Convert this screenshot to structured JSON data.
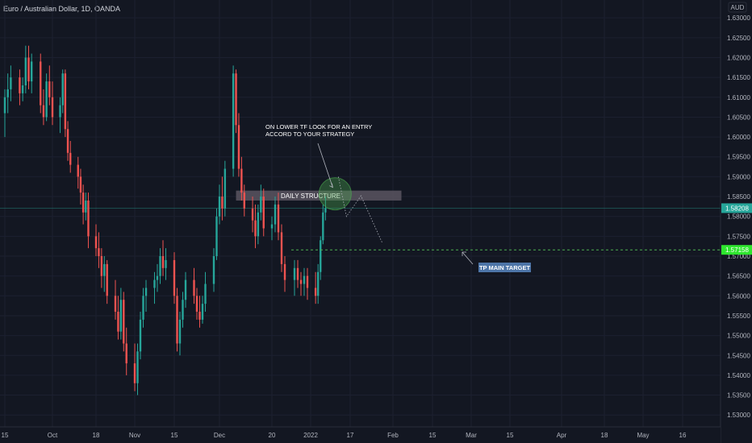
{
  "header": {
    "title": "Euro / Australian Dollar, 1D, OANDA"
  },
  "colors": {
    "background": "#131722",
    "up": "#26a69a",
    "down": "#ef5350",
    "zone": "#5a5560",
    "target_line": "#4caf50",
    "current_price_bg": "#26a69a",
    "target_price_bg": "#2ee62e",
    "tp_label_bg": "#4d75a8",
    "circle": "#4caf50"
  },
  "chart_data": {
    "type": "candlestick",
    "title": "Euro / Australian Dollar, 1D, OANDA",
    "currency_label": "AUD",
    "y_ticks": [
      "1.63000",
      "1.62500",
      "1.62000",
      "1.61500",
      "1.61000",
      "1.60500",
      "1.60000",
      "1.59500",
      "1.59000",
      "1.58500",
      "1.58000",
      "1.57500",
      "1.57000",
      "1.56500",
      "1.56000",
      "1.55500",
      "1.55000",
      "1.54500",
      "1.54000",
      "1.53500",
      "1.53000"
    ],
    "x_ticks": [
      {
        "label": "15",
        "date": "2021-09-15"
      },
      {
        "label": "Oct",
        "date": "2021-10-01"
      },
      {
        "label": "18",
        "date": "2021-10-18"
      },
      {
        "label": "Nov",
        "date": "2021-11-01"
      },
      {
        "label": "15",
        "date": "2021-11-15"
      },
      {
        "label": "Dec",
        "date": "2021-12-01"
      },
      {
        "label": "20",
        "date": "2021-12-20"
      },
      {
        "label": "2022",
        "date": "2022-01-01"
      },
      {
        "label": "17",
        "date": "2022-01-17"
      },
      {
        "label": "Feb",
        "date": "2022-02-01"
      },
      {
        "label": "15",
        "date": "2022-02-15"
      },
      {
        "label": "Mar",
        "date": "2022-03-01"
      },
      {
        "label": "15",
        "date": "2022-03-15"
      },
      {
        "label": "Apr",
        "date": "2022-04-01"
      },
      {
        "label": "18",
        "date": "2022-04-18"
      },
      {
        "label": "May",
        "date": "2022-05-02"
      },
      {
        "label": "16",
        "date": "2022-05-16"
      }
    ],
    "y_range": [
      1.527,
      1.6345
    ],
    "x_range": [
      "2021-09-15",
      "2022-06-01"
    ],
    "current_price": "1.58208",
    "target_price": "1.57158",
    "ohlc": [
      {
        "date": "2021-09-15",
        "o": 1.606,
        "h": 1.612,
        "l": 1.6,
        "c": 1.61
      },
      {
        "date": "2021-09-16",
        "o": 1.61,
        "h": 1.616,
        "l": 1.606,
        "c": 1.612
      },
      {
        "date": "2021-09-17",
        "o": 1.612,
        "h": 1.618,
        "l": 1.609,
        "c": 1.615
      },
      {
        "date": "2021-09-20",
        "o": 1.615,
        "h": 1.617,
        "l": 1.608,
        "c": 1.611
      },
      {
        "date": "2021-09-21",
        "o": 1.611,
        "h": 1.615,
        "l": 1.609,
        "c": 1.613
      },
      {
        "date": "2021-09-22",
        "o": 1.613,
        "h": 1.623,
        "l": 1.611,
        "c": 1.62
      },
      {
        "date": "2021-09-23",
        "o": 1.62,
        "h": 1.623,
        "l": 1.612,
        "c": 1.614
      },
      {
        "date": "2021-09-24",
        "o": 1.614,
        "h": 1.621,
        "l": 1.611,
        "c": 1.619
      },
      {
        "date": "2021-09-27",
        "o": 1.619,
        "h": 1.621,
        "l": 1.606,
        "c": 1.608
      },
      {
        "date": "2021-09-28",
        "o": 1.608,
        "h": 1.612,
        "l": 1.603,
        "c": 1.605
      },
      {
        "date": "2021-09-29",
        "o": 1.605,
        "h": 1.616,
        "l": 1.604,
        "c": 1.614
      },
      {
        "date": "2021-09-30",
        "o": 1.614,
        "h": 1.618,
        "l": 1.608,
        "c": 1.61
      },
      {
        "date": "2021-10-01",
        "o": 1.61,
        "h": 1.614,
        "l": 1.603,
        "c": 1.605
      },
      {
        "date": "2021-10-04",
        "o": 1.605,
        "h": 1.61,
        "l": 1.601,
        "c": 1.608
      },
      {
        "date": "2021-10-05",
        "o": 1.608,
        "h": 1.617,
        "l": 1.606,
        "c": 1.616
      },
      {
        "date": "2021-10-06",
        "o": 1.616,
        "h": 1.617,
        "l": 1.6,
        "c": 1.602
      },
      {
        "date": "2021-10-07",
        "o": 1.602,
        "h": 1.604,
        "l": 1.594,
        "c": 1.596
      },
      {
        "date": "2021-10-08",
        "o": 1.596,
        "h": 1.599,
        "l": 1.591,
        "c": 1.593
      },
      {
        "date": "2021-10-11",
        "o": 1.593,
        "h": 1.595,
        "l": 1.587,
        "c": 1.59
      },
      {
        "date": "2021-10-12",
        "o": 1.59,
        "h": 1.592,
        "l": 1.583,
        "c": 1.586
      },
      {
        "date": "2021-10-13",
        "o": 1.586,
        "h": 1.588,
        "l": 1.578,
        "c": 1.581
      },
      {
        "date": "2021-10-14",
        "o": 1.581,
        "h": 1.586,
        "l": 1.579,
        "c": 1.584
      },
      {
        "date": "2021-10-15",
        "o": 1.584,
        "h": 1.586,
        "l": 1.572,
        "c": 1.575
      },
      {
        "date": "2021-10-18",
        "o": 1.575,
        "h": 1.578,
        "l": 1.57,
        "c": 1.572
      },
      {
        "date": "2021-10-19",
        "o": 1.572,
        "h": 1.576,
        "l": 1.567,
        "c": 1.57
      },
      {
        "date": "2021-10-20",
        "o": 1.57,
        "h": 1.572,
        "l": 1.562,
        "c": 1.565
      },
      {
        "date": "2021-10-21",
        "o": 1.565,
        "h": 1.57,
        "l": 1.561,
        "c": 1.568
      },
      {
        "date": "2021-10-22",
        "o": 1.568,
        "h": 1.569,
        "l": 1.558,
        "c": 1.56
      },
      {
        "date": "2021-10-25",
        "o": 1.56,
        "h": 1.564,
        "l": 1.554,
        "c": 1.556
      },
      {
        "date": "2021-10-26",
        "o": 1.556,
        "h": 1.56,
        "l": 1.549,
        "c": 1.551
      },
      {
        "date": "2021-10-27",
        "o": 1.551,
        "h": 1.562,
        "l": 1.549,
        "c": 1.559
      },
      {
        "date": "2021-10-28",
        "o": 1.559,
        "h": 1.561,
        "l": 1.546,
        "c": 1.548
      },
      {
        "date": "2021-10-29",
        "o": 1.548,
        "h": 1.552,
        "l": 1.54,
        "c": 1.543
      },
      {
        "date": "2021-11-01",
        "o": 1.543,
        "h": 1.548,
        "l": 1.536,
        "c": 1.538
      },
      {
        "date": "2021-11-02",
        "o": 1.538,
        "h": 1.548,
        "l": 1.535,
        "c": 1.546
      },
      {
        "date": "2021-11-03",
        "o": 1.546,
        "h": 1.556,
        "l": 1.544,
        "c": 1.554
      },
      {
        "date": "2021-11-04",
        "o": 1.554,
        "h": 1.562,
        "l": 1.552,
        "c": 1.56
      },
      {
        "date": "2021-11-05",
        "o": 1.56,
        "h": 1.564,
        "l": 1.556,
        "c": 1.562
      },
      {
        "date": "2021-11-08",
        "o": 1.562,
        "h": 1.566,
        "l": 1.558,
        "c": 1.564
      },
      {
        "date": "2021-11-09",
        "o": 1.564,
        "h": 1.568,
        "l": 1.561,
        "c": 1.565
      },
      {
        "date": "2021-11-10",
        "o": 1.565,
        "h": 1.572,
        "l": 1.563,
        "c": 1.57
      },
      {
        "date": "2021-11-11",
        "o": 1.57,
        "h": 1.574,
        "l": 1.565,
        "c": 1.567
      },
      {
        "date": "2021-11-12",
        "o": 1.567,
        "h": 1.572,
        "l": 1.564,
        "c": 1.569
      },
      {
        "date": "2021-11-15",
        "o": 1.569,
        "h": 1.571,
        "l": 1.558,
        "c": 1.56
      },
      {
        "date": "2021-11-16",
        "o": 1.56,
        "h": 1.562,
        "l": 1.546,
        "c": 1.548
      },
      {
        "date": "2021-11-17",
        "o": 1.548,
        "h": 1.556,
        "l": 1.545,
        "c": 1.554
      },
      {
        "date": "2021-11-18",
        "o": 1.554,
        "h": 1.561,
        "l": 1.552,
        "c": 1.559
      },
      {
        "date": "2021-11-19",
        "o": 1.559,
        "h": 1.566,
        "l": 1.557,
        "c": 1.564
      },
      {
        "date": "2021-11-22",
        "o": 1.564,
        "h": 1.567,
        "l": 1.558,
        "c": 1.56
      },
      {
        "date": "2021-11-23",
        "o": 1.56,
        "h": 1.562,
        "l": 1.554,
        "c": 1.556
      },
      {
        "date": "2021-11-24",
        "o": 1.556,
        "h": 1.56,
        "l": 1.552,
        "c": 1.554
      },
      {
        "date": "2021-11-25",
        "o": 1.554,
        "h": 1.56,
        "l": 1.553,
        "c": 1.558
      },
      {
        "date": "2021-11-26",
        "o": 1.558,
        "h": 1.566,
        "l": 1.556,
        "c": 1.563
      },
      {
        "date": "2021-11-29",
        "o": 1.563,
        "h": 1.572,
        "l": 1.561,
        "c": 1.57
      },
      {
        "date": "2021-11-30",
        "o": 1.57,
        "h": 1.582,
        "l": 1.569,
        "c": 1.58
      },
      {
        "date": "2021-12-01",
        "o": 1.58,
        "h": 1.588,
        "l": 1.578,
        "c": 1.585
      },
      {
        "date": "2021-12-02",
        "o": 1.585,
        "h": 1.59,
        "l": 1.579,
        "c": 1.582
      },
      {
        "date": "2021-12-03",
        "o": 1.582,
        "h": 1.594,
        "l": 1.58,
        "c": 1.592
      },
      {
        "date": "2021-12-06",
        "o": 1.592,
        "h": 1.618,
        "l": 1.59,
        "c": 1.616
      },
      {
        "date": "2021-12-07",
        "o": 1.616,
        "h": 1.617,
        "l": 1.601,
        "c": 1.603
      },
      {
        "date": "2021-12-08",
        "o": 1.603,
        "h": 1.606,
        "l": 1.59,
        "c": 1.592
      },
      {
        "date": "2021-12-09",
        "o": 1.592,
        "h": 1.595,
        "l": 1.584,
        "c": 1.586
      },
      {
        "date": "2021-12-10",
        "o": 1.586,
        "h": 1.588,
        "l": 1.58,
        "c": 1.582
      },
      {
        "date": "2021-12-13",
        "o": 1.582,
        "h": 1.585,
        "l": 1.576,
        "c": 1.579
      },
      {
        "date": "2021-12-14",
        "o": 1.579,
        "h": 1.583,
        "l": 1.572,
        "c": 1.575
      },
      {
        "date": "2021-12-15",
        "o": 1.575,
        "h": 1.583,
        "l": 1.573,
        "c": 1.581
      },
      {
        "date": "2021-12-16",
        "o": 1.581,
        "h": 1.588,
        "l": 1.579,
        "c": 1.585
      },
      {
        "date": "2021-12-17",
        "o": 1.585,
        "h": 1.587,
        "l": 1.575,
        "c": 1.577
      },
      {
        "date": "2021-12-20",
        "o": 1.577,
        "h": 1.58,
        "l": 1.574,
        "c": 1.578
      },
      {
        "date": "2021-12-21",
        "o": 1.578,
        "h": 1.585,
        "l": 1.576,
        "c": 1.583
      },
      {
        "date": "2021-12-22",
        "o": 1.583,
        "h": 1.586,
        "l": 1.574,
        "c": 1.576
      },
      {
        "date": "2021-12-23",
        "o": 1.576,
        "h": 1.578,
        "l": 1.566,
        "c": 1.568
      },
      {
        "date": "2021-12-24",
        "o": 1.568,
        "h": 1.57,
        "l": 1.561,
        "c": 1.564
      },
      {
        "date": "2021-12-27",
        "o": 1.564,
        "h": 1.569,
        "l": 1.56,
        "c": 1.567
      },
      {
        "date": "2021-12-28",
        "o": 1.567,
        "h": 1.569,
        "l": 1.562,
        "c": 1.564
      },
      {
        "date": "2021-12-29",
        "o": 1.564,
        "h": 1.566,
        "l": 1.56,
        "c": 1.563
      },
      {
        "date": "2021-12-30",
        "o": 1.563,
        "h": 1.567,
        "l": 1.56,
        "c": 1.565
      },
      {
        "date": "2021-12-31",
        "o": 1.565,
        "h": 1.567,
        "l": 1.559,
        "c": 1.562
      },
      {
        "date": "2022-01-03",
        "o": 1.562,
        "h": 1.566,
        "l": 1.558,
        "c": 1.56
      },
      {
        "date": "2022-01-04",
        "o": 1.56,
        "h": 1.568,
        "l": 1.558,
        "c": 1.566
      },
      {
        "date": "2022-01-05",
        "o": 1.566,
        "h": 1.575,
        "l": 1.564,
        "c": 1.574
      },
      {
        "date": "2022-01-06",
        "o": 1.574,
        "h": 1.583,
        "l": 1.573,
        "c": 1.581
      },
      {
        "date": "2022-01-07",
        "o": 1.581,
        "h": 1.585,
        "l": 1.579,
        "c": 1.5821
      }
    ],
    "annotations": {
      "note_line1": "ON LOWER TF LOOK FOR AN ENTRY",
      "note_line2": "ACCORD TO YOUR STRATEGY",
      "zone_label": "DAILY STRUCTURE",
      "target_label": "TP MAIN TARGET",
      "zone_range": [
        1.584,
        1.5865
      ],
      "zone_dates": [
        "2021-12-07",
        "2022-02-04"
      ],
      "target_line_start": "2021-12-26"
    }
  }
}
